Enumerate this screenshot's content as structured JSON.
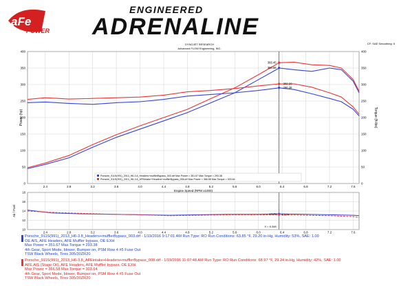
{
  "header": {
    "brand_top": "ENGINEERED",
    "brand_main": "ADRENALINE",
    "logo_text_1": "aFe",
    "logo_text_2": "POWER",
    "cf_text": "CF: SAE  Smoothing: 5",
    "dyno_line1": "DYNOJET RESEARCH",
    "dyno_line2": "Advanced FLOW Engineering, INC."
  },
  "colors": {
    "blue": "#3344dd",
    "red": "#ee3333",
    "grid": "#bbbbbb",
    "logo_red": "#d42020"
  },
  "chart_data": [
    {
      "type": "line",
      "xlabel": "Engine Speed (RPM x1000)",
      "ylabel": "Power (hp)",
      "y2label": "Torque (ft-lbs)",
      "xlim": [
        2.1,
        7.7
      ],
      "ylim": [
        0,
        400
      ],
      "y2lim": [
        0,
        400
      ],
      "xticks": [
        "2.4",
        "2.8",
        "3.2",
        "3.6",
        "4.0",
        "4.4",
        "4.8",
        "5.2",
        "5.6",
        "6.0",
        "6.4",
        "6.8",
        "7.2",
        "7.6"
      ],
      "xticks_values": [
        2.4,
        2.8,
        3.2,
        3.6,
        4.0,
        4.4,
        4.8,
        5.2,
        5.6,
        6.0,
        6.4,
        6.8,
        7.2,
        7.6
      ],
      "yticks": [
        0,
        50,
        100,
        150,
        200,
        250,
        300,
        350,
        400
      ],
      "cursor_x": 6.348,
      "legend": {
        "line1": "Porsche_911S(991)_2013_H6-3.8_Headers+mufflerBypass_003.drf Max Power = 351.67    Max Torque = 293.38",
        "line2": "Porsche_911S(991)_2013_H6-3.8_AFEintake+Headers+mufflerBypass_008.drf Max Power = 366.58    Max Torque = 303.64"
      },
      "annotations": [
        {
          "text": "366.45",
          "x": 6.348,
          "y": 366.45,
          "series": "red"
        },
        {
          "text": "350.56",
          "x": 6.348,
          "y": 350.56,
          "series": "blue"
        },
        {
          "text": "302.20",
          "x": 6.348,
          "y": 302.2,
          "series": "red"
        },
        {
          "text": "290.38",
          "x": 6.348,
          "y": 290.38,
          "series": "blue"
        }
      ],
      "series": [
        {
          "kind": "power",
          "color_key": "blue",
          "x": [
            2.1,
            2.4,
            2.8,
            3.2,
            3.6,
            4.0,
            4.4,
            4.8,
            5.2,
            5.6,
            6.0,
            6.35,
            6.6,
            6.9,
            7.2,
            7.4,
            7.6,
            7.7
          ],
          "y": [
            45,
            58,
            78,
            110,
            140,
            165,
            190,
            215,
            245,
            275,
            315,
            350,
            345,
            340,
            350,
            345,
            310,
            275
          ]
        },
        {
          "kind": "power",
          "color_key": "red",
          "x": [
            2.1,
            2.4,
            2.8,
            3.2,
            3.6,
            4.0,
            4.4,
            4.8,
            5.2,
            5.6,
            6.0,
            6.35,
            6.6,
            6.9,
            7.2,
            7.4,
            7.6,
            7.7
          ],
          "y": [
            48,
            62,
            85,
            118,
            148,
            175,
            200,
            225,
            258,
            290,
            330,
            366,
            368,
            360,
            358,
            350,
            315,
            280
          ]
        },
        {
          "kind": "torque",
          "color_key": "blue",
          "x": [
            2.1,
            2.4,
            2.8,
            3.2,
            3.6,
            4.0,
            4.4,
            4.8,
            5.2,
            5.6,
            6.0,
            6.35,
            6.6,
            6.9,
            7.2,
            7.4,
            7.6,
            7.7
          ],
          "y": [
            245,
            247,
            243,
            240,
            245,
            248,
            255,
            265,
            270,
            275,
            282,
            290,
            285,
            272,
            258,
            248,
            225,
            205
          ]
        },
        {
          "kind": "torque",
          "color_key": "red",
          "x": [
            2.1,
            2.4,
            2.8,
            3.2,
            3.6,
            4.0,
            4.4,
            4.8,
            5.2,
            5.6,
            6.0,
            6.35,
            6.6,
            6.9,
            7.2,
            7.4,
            7.6,
            7.7
          ],
          "y": [
            255,
            260,
            256,
            258,
            260,
            262,
            268,
            278,
            282,
            288,
            296,
            302,
            302,
            292,
            275,
            262,
            232,
            210
          ]
        }
      ]
    },
    {
      "type": "line",
      "ylabel": "Air / Fuel",
      "xlim": [
        2.1,
        7.7
      ],
      "ylim": [
        10,
        18
      ],
      "yticks": [
        10,
        12,
        14,
        16,
        18
      ],
      "cursor_readout": "X = 6.348",
      "annotations": [
        {
          "text": "13.38",
          "x": 6.348,
          "y": 13.38,
          "series": "blue"
        },
        {
          "text": "13.24",
          "x": 6.348,
          "y": 13.24,
          "series": "red"
        }
      ],
      "series": [
        {
          "color_key": "blue",
          "x": [
            2.1,
            2.5,
            3.0,
            3.5,
            4.0,
            4.5,
            5.0,
            5.5,
            6.0,
            6.35,
            6.8,
            7.2,
            7.6,
            7.7
          ],
          "y": [
            14.2,
            13.6,
            13.4,
            13.3,
            13.2,
            13.1,
            13.2,
            13.3,
            13.3,
            13.4,
            13.3,
            13.2,
            13.1,
            13.0
          ]
        },
        {
          "color_key": "red",
          "x": [
            2.1,
            2.5,
            3.0,
            3.5,
            4.0,
            4.5,
            5.0,
            5.5,
            6.0,
            6.35,
            6.8,
            7.2,
            7.6,
            7.7
          ],
          "y": [
            14.0,
            13.7,
            13.5,
            13.3,
            13.2,
            13.0,
            13.1,
            13.2,
            13.2,
            13.2,
            13.1,
            13.0,
            12.8,
            12.6
          ]
        }
      ]
    }
  ],
  "footer": {
    "blue": [
      "Porsche_911S(991)_2013_H6-3.8_Headers+mufflerBypass_003.drf - 1/19/2016 9:17:01 AM Run Type: RO  Run Conditions: 63.85 °F, 29.20 in-Hg,  Humidity:  53%, SAE: 1.00",
      "OE AIS, AFE Headers, AFE Muffler bypass, OE EXH",
      "Max Power = 351.67  Max Torque = 293.38",
      "4th Gear, Sport Mode, blower, Bumper on, PSM Row 4 #5 Fuse Out",
      "TSW Black Wheels, Tires 305/30ZR20"
    ],
    "red": [
      "Porsche_911S(991)_2013_H6-3.8_AFEintake+Headers+mufflerBypass_008.drf - 1/19/2016 11:07:48 AM Run Type: RO  Run Conditions: 68.97 °F, 29.24 in-Hg,  Humidity:  42%, SAE: 1.00",
      "AFE AIS (Stage Oil), AFE Headers, AFE Muffler bypass, OE EXH",
      "Max Power = 366.58  Max Torque = 303.64",
      "4th Gear, Sport Mode, blower, Bumper on, PSM Row 4 #5 Fuse Out",
      "TSW Black Wheels, Tires 305/30ZR20"
    ]
  }
}
